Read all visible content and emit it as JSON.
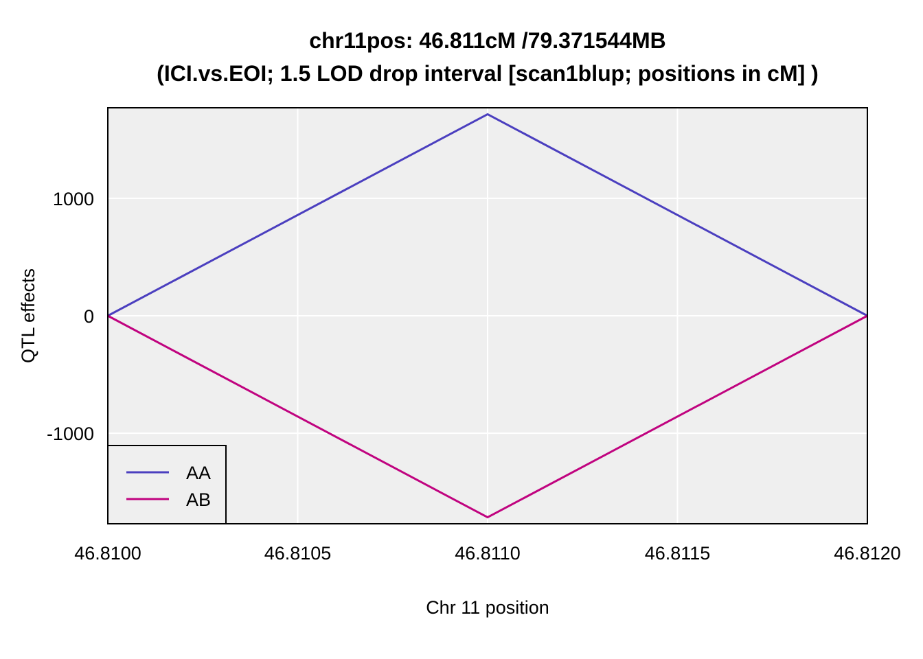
{
  "chart_data": {
    "type": "line",
    "title": "chr11pos: 46.811cM /79.371544MB",
    "subtitle": "(ICI.vs.EOI; 1.5 LOD drop interval [scan1blup; positions in cM] )",
    "xlabel": "Chr 11 position",
    "ylabel": "QTL effects",
    "xlim": [
      46.81,
      46.812
    ],
    "ylim": [
      -1770,
      1770
    ],
    "x_ticks": [
      46.81,
      46.8105,
      46.811,
      46.8115,
      46.812
    ],
    "x_tick_labels": [
      "46.8100",
      "46.8105",
      "46.8110",
      "46.8115",
      "46.8120"
    ],
    "y_ticks": [
      -1000,
      0,
      1000
    ],
    "y_tick_labels": [
      "-1000",
      "0",
      "1000"
    ],
    "x": [
      46.81,
      46.811,
      46.812
    ],
    "series": [
      {
        "name": "AA",
        "color": "#4b3fbf",
        "values": [
          0,
          1715,
          0
        ]
      },
      {
        "name": "AB",
        "color": "#c0037f",
        "values": [
          0,
          -1715,
          0
        ]
      }
    ],
    "grid": true,
    "legend_position": "bottom-left",
    "panel_background": "#efefef"
  }
}
